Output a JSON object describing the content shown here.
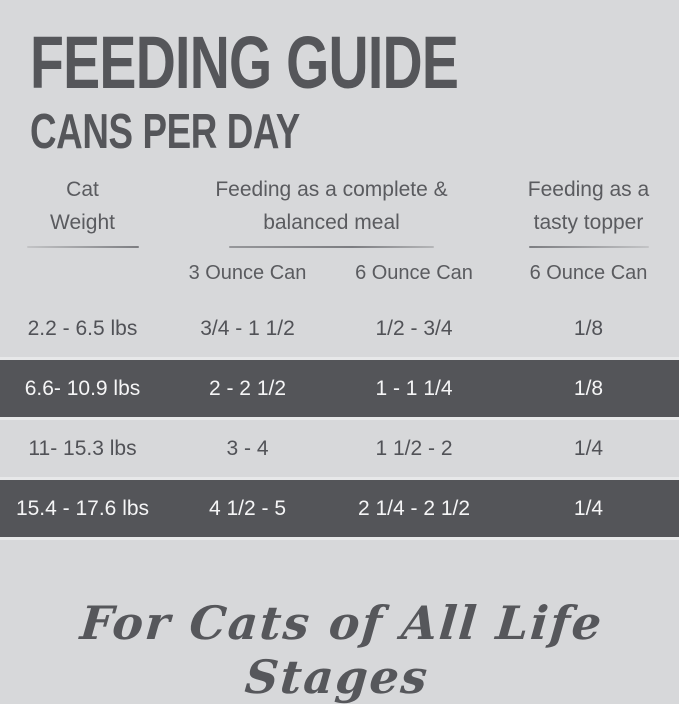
{
  "header": {
    "title": "FEEDING GUIDE",
    "subtitle": "CANS PER DAY"
  },
  "table": {
    "groups": [
      {
        "label": "Cat\nWeight"
      },
      {
        "label": "Feeding as a complete &\nbalanced meal"
      },
      {
        "label": "Feeding as a\ntasty topper"
      }
    ],
    "subheaders": [
      "3 Ounce Can",
      "6 Ounce Can",
      "6 Ounce Can"
    ],
    "rows": [
      {
        "highlight": false,
        "cells": [
          "2.2 - 6.5 lbs",
          "3/4 - 1 1/2",
          "1/2 - 3/4",
          "1/8"
        ]
      },
      {
        "highlight": true,
        "cells": [
          "6.6- 10.9 lbs",
          "2 - 2 1/2",
          "1 - 1 1/4",
          "1/8"
        ]
      },
      {
        "highlight": false,
        "cells": [
          "11- 15.3 lbs",
          "3 - 4",
          "1 1/2 - 2",
          "1/4"
        ]
      },
      {
        "highlight": true,
        "cells": [
          "15.4 - 17.6 lbs",
          "4 1/2 - 5",
          "2 1/4 - 2 1/2",
          "1/4"
        ]
      }
    ]
  },
  "footer": {
    "tagline": "For Cats of All Life Stages"
  },
  "colors": {
    "background": "#d7d8da",
    "highlight_row": "#545559",
    "row_separator": "#e7e8e9",
    "text_dark": "#55565a",
    "text_on_dark": "#f5f5f6"
  },
  "chart_data": {
    "type": "table",
    "title": "FEEDING GUIDE — CANS PER DAY",
    "columns": [
      "Cat Weight",
      "Feeding as a complete & balanced meal — 3 Ounce Can",
      "Feeding as a complete & balanced meal — 6 Ounce Can",
      "Feeding as a tasty topper — 6 Ounce Can"
    ],
    "rows": [
      [
        "2.2 - 6.5 lbs",
        "3/4 - 1 1/2",
        "1/2 - 3/4",
        "1/8"
      ],
      [
        "6.6- 10.9 lbs",
        "2 - 2 1/2",
        "1 - 1 1/4",
        "1/8"
      ],
      [
        "11- 15.3 lbs",
        "3 - 4",
        "1 1/2 - 2",
        "1/4"
      ],
      [
        "15.4 - 17.6 lbs",
        "4 1/2 - 5",
        "2 1/4 - 2 1/2",
        "1/4"
      ]
    ],
    "highlighted_rows": [
      1,
      3
    ],
    "footnote": "For Cats of All Life Stages"
  }
}
